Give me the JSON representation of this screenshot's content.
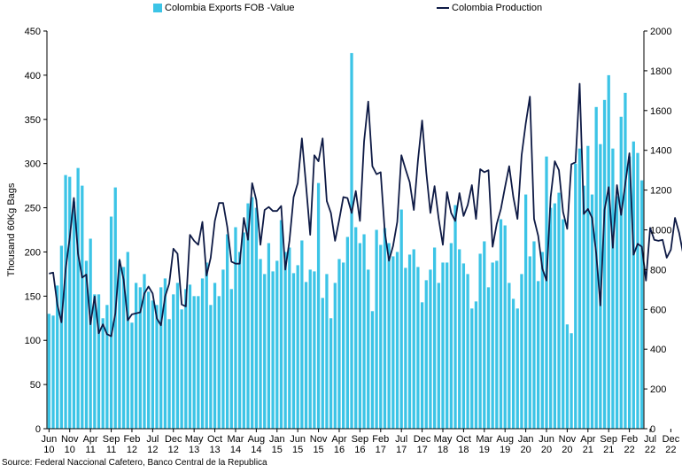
{
  "chart_data": {
    "type": "bar+line",
    "title": "",
    "ylabel": "Thousand 60Kg Bags",
    "ylim_left": [
      0,
      450
    ],
    "ylim_right": [
      0,
      2000
    ],
    "left_ticks": [
      "0",
      "50",
      "100",
      "150",
      "200",
      "250",
      "300",
      "350",
      "400",
      "450"
    ],
    "right_ticks": [
      "0",
      "200",
      "400",
      "600",
      "800",
      "1000",
      "1200",
      "1400",
      "1600",
      "1800",
      "2000"
    ],
    "x_tick_labels": [
      {
        "month": "Jun",
        "year": "10"
      },
      {
        "month": "Nov",
        "year": "10"
      },
      {
        "month": "Apr",
        "year": "11"
      },
      {
        "month": "Sep",
        "year": "11"
      },
      {
        "month": "Feb",
        "year": "12"
      },
      {
        "month": "Jul",
        "year": "12"
      },
      {
        "month": "Dec",
        "year": "12"
      },
      {
        "month": "May",
        "year": "13"
      },
      {
        "month": "Oct",
        "year": "13"
      },
      {
        "month": "Mar",
        "year": "14"
      },
      {
        "month": "Aug",
        "year": "14"
      },
      {
        "month": "Jan",
        "year": "15"
      },
      {
        "month": "Jun",
        "year": "15"
      },
      {
        "month": "Nov",
        "year": "15"
      },
      {
        "month": "Apr",
        "year": "16"
      },
      {
        "month": "Sep",
        "year": "16"
      },
      {
        "month": "Feb",
        "year": "17"
      },
      {
        "month": "Jul",
        "year": "17"
      },
      {
        "month": "Dec",
        "year": "17"
      },
      {
        "month": "May",
        "year": "18"
      },
      {
        "month": "Oct",
        "year": "18"
      },
      {
        "month": "Mar",
        "year": "19"
      },
      {
        "month": "Aug",
        "year": "19"
      },
      {
        "month": "Jan",
        "year": "20"
      },
      {
        "month": "Jun",
        "year": "20"
      },
      {
        "month": "Nov",
        "year": "20"
      },
      {
        "month": "Apr",
        "year": "21"
      },
      {
        "month": "Sep",
        "year": "21"
      },
      {
        "month": "Feb",
        "year": "22"
      },
      {
        "month": "Jul",
        "year": "22"
      },
      {
        "month": "Dec",
        "year": "22"
      }
    ],
    "series": [
      {
        "name": "Colombia Exports FOB -Value",
        "axis": "left",
        "kind": "bar",
        "color": "#3cc4e6",
        "values": [
          130,
          128,
          162,
          207,
          287,
          285,
          257,
          295,
          275,
          190,
          215,
          152,
          152,
          125,
          140,
          240,
          273,
          190,
          183,
          200,
          120,
          165,
          160,
          175,
          155,
          145,
          140,
          160,
          170,
          124,
          152,
          165,
          135,
          158,
          163,
          150,
          150,
          170,
          188,
          140,
          165,
          150,
          180,
          220,
          158,
          228,
          200,
          222,
          255,
          262,
          250,
          192,
          175,
          210,
          178,
          190,
          236,
          200,
          205,
          176,
          185,
          213,
          166,
          180,
          178,
          278,
          148,
          175,
          125,
          165,
          192,
          188,
          217,
          425,
          228,
          210,
          220,
          180,
          133,
          225,
          208,
          227,
          210,
          195,
          200,
          248,
          182,
          197,
          203,
          183,
          143,
          168,
          180,
          205,
          165,
          188,
          188,
          210,
          253,
          203,
          187,
          175,
          136,
          144,
          198,
          212,
          160,
          188,
          190,
          237,
          230,
          165,
          147,
          136,
          175,
          265,
          195,
          212,
          167,
          200,
          308,
          250,
          255,
          267,
          237,
          118,
          108,
          300,
          317,
          275,
          320,
          265,
          364,
          322,
          372,
          400,
          317,
          263,
          353,
          380,
          308,
          325,
          312,
          281
        ]
      },
      {
        "name": "Colombia Production",
        "axis": "right",
        "kind": "line",
        "color": "#0e1a45",
        "values": [
          780,
          785,
          625,
          535,
          800,
          960,
          1160,
          880,
          760,
          775,
          525,
          665,
          480,
          525,
          475,
          465,
          580,
          850,
          750,
          545,
          575,
          580,
          585,
          680,
          715,
          680,
          555,
          520,
          665,
          730,
          905,
          880,
          625,
          615,
          975,
          945,
          925,
          1040,
          770,
          860,
          1045,
          1135,
          1135,
          1015,
          840,
          830,
          830,
          1060,
          950,
          1235,
          1150,
          925,
          1100,
          1115,
          1095,
          1095,
          1120,
          800,
          945,
          1165,
          1235,
          1460,
          1225,
          975,
          1375,
          1345,
          1460,
          1145,
          1085,
          945,
          1050,
          1165,
          1160,
          1085,
          1195,
          1045,
          1445,
          1645,
          1320,
          1280,
          1290,
          990,
          845,
          920,
          1040,
          1375,
          1305,
          1240,
          1100,
          1350,
          1550,
          1290,
          1085,
          1220,
          1055,
          925,
          1190,
          1085,
          1045,
          1185,
          1070,
          1125,
          1225,
          1055,
          1305,
          1290,
          1300,
          915,
          1030,
          1105,
          1215,
          1320,
          1165,
          1055,
          1375,
          1535,
          1670,
          1055,
          970,
          805,
          745,
          1165,
          1345,
          1300,
          1090,
          1005,
          1330,
          1340,
          1735,
          1080,
          1105,
          1060,
          880,
          620,
          1100,
          1215,
          910,
          1225,
          1075,
          1230,
          1385,
          875,
          930,
          915,
          745,
          1010,
          950,
          945,
          950,
          860,
          900,
          1060,
          985,
          875
        ]
      }
    ],
    "legend_position": "top-center",
    "source": "Source: Federal Naccional Cafetero, Banco Central de la Republica"
  }
}
